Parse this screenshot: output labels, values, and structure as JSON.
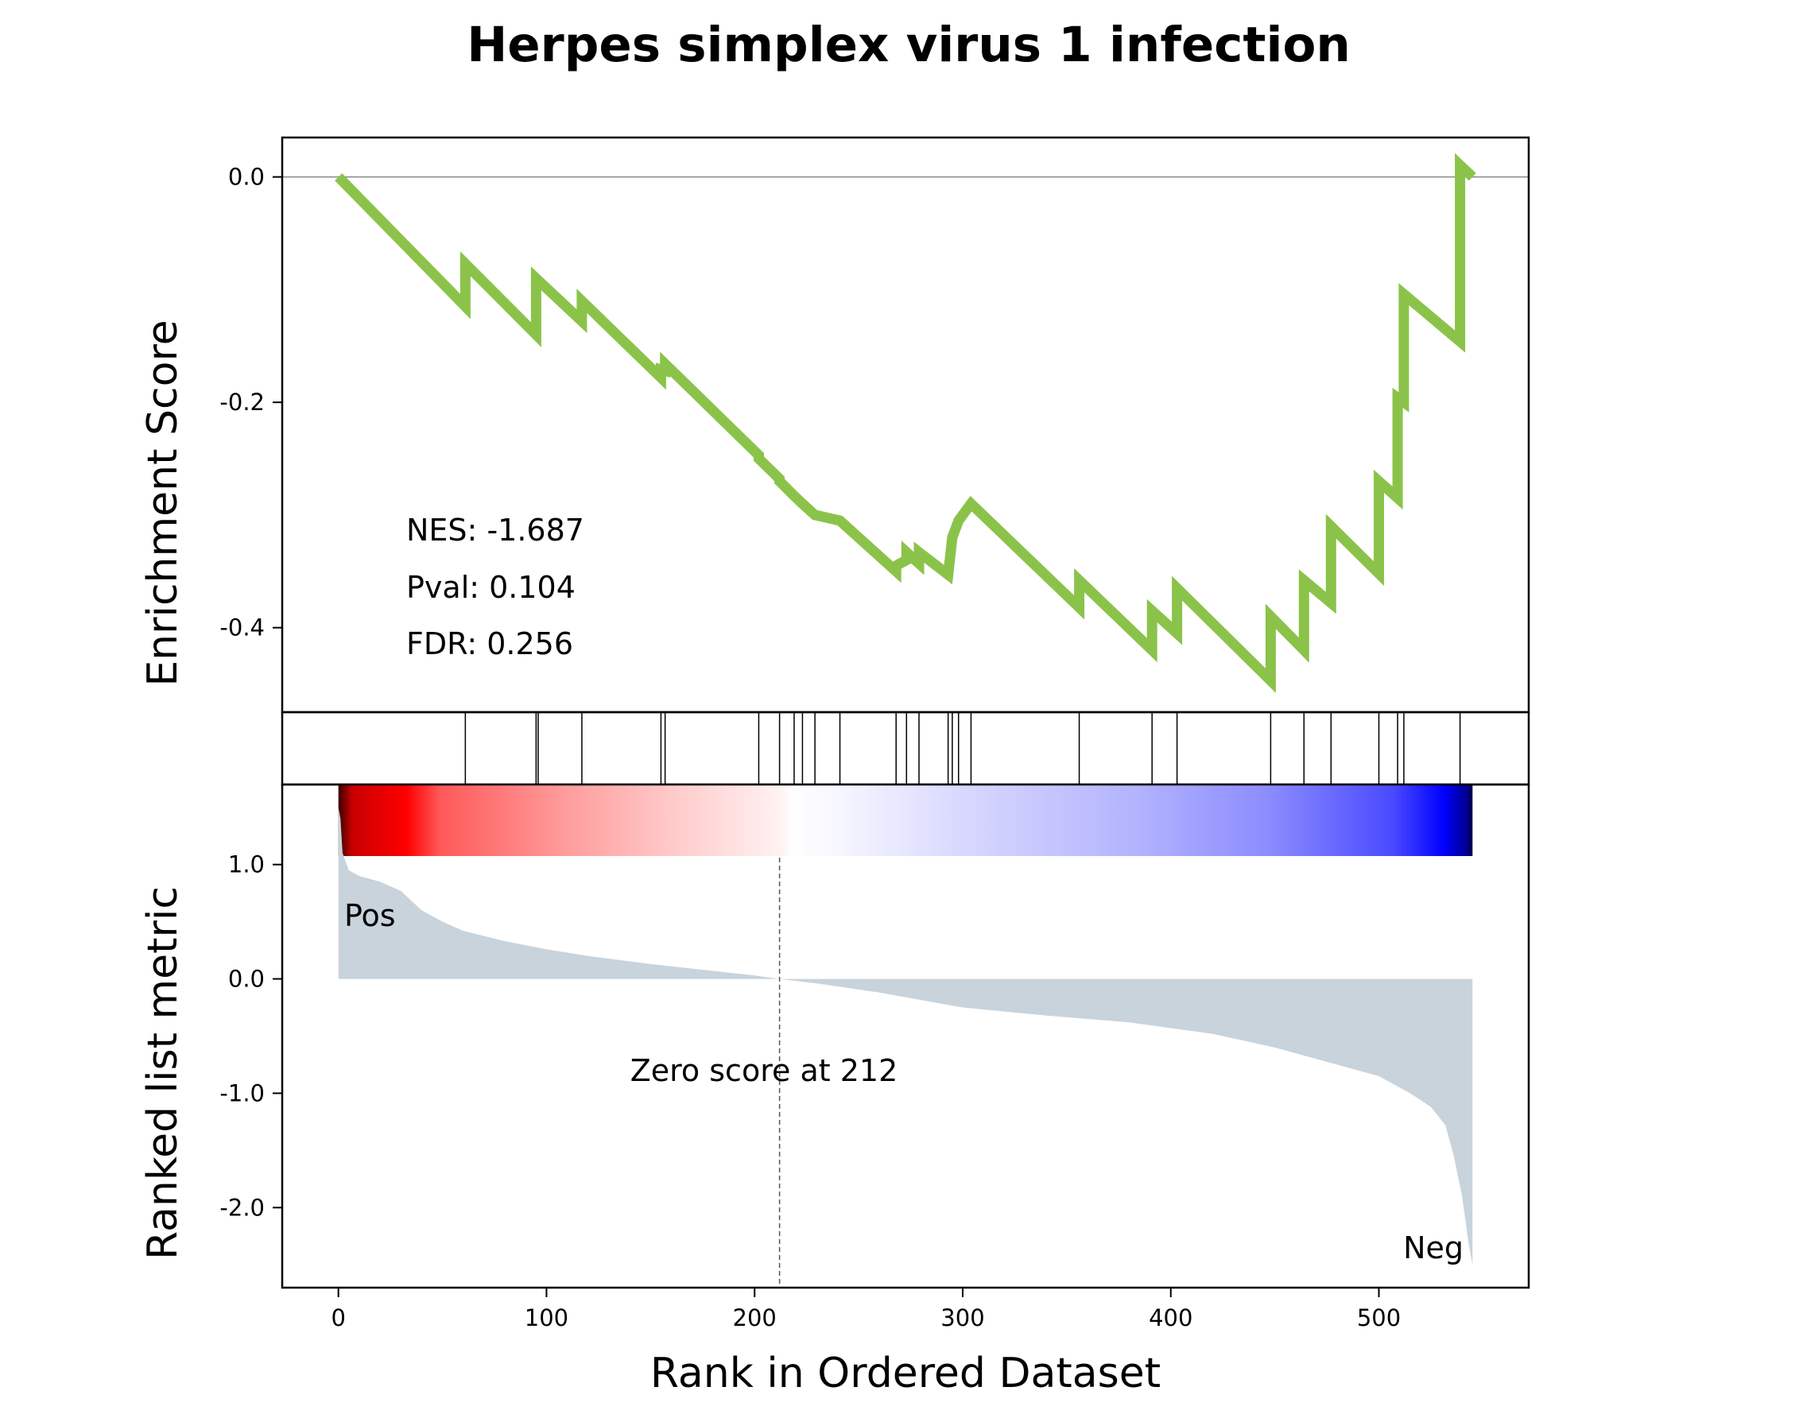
{
  "chart_data": {
    "type": "line",
    "title": "Herpes simplex virus 1 infection",
    "xlabel": "Rank in Ordered Dataset",
    "xlim": [
      -27,
      572
    ],
    "xticks": [
      0,
      100,
      200,
      300,
      400,
      500
    ],
    "n_genes": 545,
    "colors": {
      "es_line": "#8bc34a",
      "metric_fill": "#c8d3dc",
      "pos": "#ff0000",
      "neg": "#0000ff"
    },
    "panels": {
      "enrichment": {
        "ylabel": "Enrichment Score",
        "ylim": [
          -0.475,
          0.035
        ],
        "yticks": [
          0.0,
          -0.2,
          -0.4
        ],
        "ytick_labels": [
          "0.0",
          "-0.2",
          "-0.4"
        ],
        "series": [
          {
            "x": [
              0,
              61,
              61,
              95,
              95,
              117,
              117,
              155,
              155,
              157,
              157,
              202,
              202,
              212,
              212,
              219,
              219,
              223,
              223,
              229,
              229,
              241,
              241,
              268,
              268,
              273,
              273,
              279,
              279,
              293,
              293,
              295,
              295,
              298,
              298,
              304,
              304,
              356,
              356,
              391,
              391,
              403,
              403,
              448,
              448,
              464,
              464,
              477,
              477,
              500,
              500,
              509,
              509,
              512,
              512,
              539,
              539,
              545
            ],
            "y": [
              0.0,
              -0.115,
              -0.077,
              -0.14,
              -0.09,
              -0.128,
              -0.11,
              -0.178,
              -0.171,
              -0.172,
              -0.166,
              -0.247,
              -0.25,
              -0.268,
              -0.27,
              -0.283,
              -0.283,
              -0.29,
              -0.29,
              -0.3,
              -0.3,
              -0.305,
              -0.305,
              -0.35,
              -0.345,
              -0.34,
              -0.333,
              -0.343,
              -0.333,
              -0.353,
              -0.353,
              -0.32,
              -0.32,
              -0.305,
              -0.305,
              -0.29,
              -0.29,
              -0.382,
              -0.358,
              -0.42,
              -0.385,
              -0.405,
              -0.365,
              -0.447,
              -0.39,
              -0.42,
              -0.358,
              -0.378,
              -0.31,
              -0.352,
              -0.27,
              -0.285,
              -0.196,
              -0.2,
              -0.104,
              -0.146,
              0.0105,
              0.0
            ]
          }
        ],
        "stats": {
          "nes": "NES: -1.687",
          "pval": "Pval: 0.104",
          "fdr": "FDR: 0.256"
        }
      },
      "hits": {
        "positions": [
          61,
          95,
          96,
          117,
          155,
          157,
          202,
          212,
          219,
          223,
          229,
          241,
          268,
          273,
          279,
          293,
          295,
          298,
          304,
          356,
          391,
          403,
          448,
          464,
          477,
          500,
          509,
          512,
          539
        ]
      },
      "metric": {
        "ylabel": "Ranked list metric",
        "ylim": [
          -2.7,
          1.7
        ],
        "yticks": [
          1.0,
          0.0,
          -1.0,
          -2.0
        ],
        "ytick_labels": [
          "1.0",
          "0.0",
          "-1.0",
          "-2.0"
        ],
        "profile": {
          "x": [
            0,
            1,
            2,
            5,
            10,
            20,
            30,
            40,
            50,
            60,
            80,
            100,
            120,
            150,
            180,
            200,
            212,
            230,
            260,
            300,
            340,
            380,
            420,
            450,
            480,
            500,
            515,
            525,
            532,
            536,
            540,
            543,
            545
          ],
          "y": [
            1.5,
            1.4,
            1.1,
            0.95,
            0.9,
            0.85,
            0.77,
            0.6,
            0.5,
            0.42,
            0.33,
            0.26,
            0.2,
            0.13,
            0.07,
            0.03,
            0.0,
            -0.04,
            -0.12,
            -0.25,
            -0.32,
            -0.38,
            -0.48,
            -0.6,
            -0.75,
            -0.85,
            -1.0,
            -1.12,
            -1.28,
            -1.55,
            -1.9,
            -2.3,
            -2.5
          ]
        },
        "zero_cross": 212,
        "zero_label": "Zero score at 212",
        "pos_label": "Pos",
        "neg_label": "Neg"
      }
    }
  }
}
